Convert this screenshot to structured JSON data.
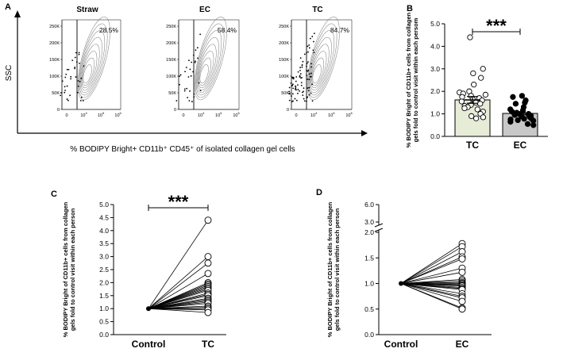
{
  "figure": {
    "panel_a": {
      "letter": "A",
      "y_axis_label": "SSC",
      "x_axis_label": "% BODIPY Bright+ CD11b⁺ CD45⁺ of isolated collagen gel cells",
      "plots": [
        {
          "title": "Straw",
          "percent": "28.5%"
        },
        {
          "title": "EC",
          "percent": "58.4%"
        },
        {
          "title": "TC",
          "percent": "84.7%"
        }
      ],
      "y_ticks": [
        "250K",
        "200K",
        "150K",
        "100K",
        "50K",
        "0"
      ],
      "x_ticks": [
        {
          "base": "0",
          "exp": ""
        },
        {
          "base": "10",
          "exp": "4"
        },
        {
          "base": "10",
          "exp": "5"
        },
        {
          "base": "10",
          "exp": "6"
        }
      ]
    },
    "panel_b": {
      "letter": "B"
    },
    "panel_c": {
      "letter": "C"
    },
    "panel_d": {
      "letter": "D"
    }
  },
  "chart_data": [
    {
      "id": "B",
      "type": "bar",
      "ylabel": "% BODIPY Bright of CD11b+ cells from collagen gels fold to control visit within each persom",
      "categories": [
        "TC",
        "EC"
      ],
      "values": [
        1.62,
        1.02
      ],
      "errors": [
        0.15,
        0.06
      ],
      "bar_colors": [
        "#e6ecd6",
        "#c8c8c8"
      ],
      "points": [
        [
          4.4,
          3.0,
          2.8,
          2.6,
          2.3,
          2.0,
          1.95,
          1.9,
          1.85,
          1.8,
          1.75,
          1.7,
          1.65,
          1.6,
          1.55,
          1.5,
          1.45,
          1.4,
          1.35,
          1.3,
          1.25,
          1.2,
          1.1,
          1.0,
          0.9,
          0.85,
          0.8
        ],
        [
          1.8,
          1.75,
          1.6,
          1.5,
          1.45,
          1.3,
          1.2,
          1.15,
          1.1,
          1.05,
          1.0,
          1.0,
          0.98,
          0.95,
          0.92,
          0.9,
          0.88,
          0.85,
          0.8,
          0.78,
          0.75,
          0.72,
          0.7,
          0.65,
          0.55,
          0.5
        ]
      ],
      "point_styles": [
        "open",
        "filled"
      ],
      "ylim": [
        0,
        5
      ],
      "yticks": [
        "0.0",
        "1.0",
        "2.0",
        "3.0",
        "4.0",
        "5.0"
      ],
      "significance": "***"
    },
    {
      "id": "C",
      "type": "line",
      "ylabel": "% BODIPY Bright of CD11b+ cells from collagen gels fold to control visit within each person",
      "categories": [
        "Control",
        "TC"
      ],
      "start_value": 1.0,
      "end_values": [
        4.4,
        3.0,
        2.75,
        2.35,
        2.0,
        1.95,
        1.9,
        1.85,
        1.8,
        1.75,
        1.7,
        1.6,
        1.55,
        1.5,
        1.4,
        1.35,
        1.3,
        1.25,
        1.2,
        1.1,
        1.05,
        1.0,
        0.95,
        0.85
      ],
      "ylim": [
        0,
        5
      ],
      "yticks": [
        "0.0",
        "0.5",
        "1.0",
        "1.5",
        "2.0",
        "2.5",
        "3.0",
        "3.5",
        "4.0",
        "4.5",
        "5.0"
      ],
      "significance": "***"
    },
    {
      "id": "D",
      "type": "line",
      "ylabel": "% BODIPY Bright of CD11b+ cells from collagen gels fold to control visit within each person",
      "categories": [
        "Control",
        "EC"
      ],
      "start_value": 1.0,
      "end_values": [
        1.78,
        1.72,
        1.62,
        1.52,
        1.48,
        1.3,
        1.22,
        1.08,
        1.05,
        1.02,
        1.0,
        0.98,
        0.96,
        0.95,
        0.92,
        0.9,
        0.88,
        0.8,
        0.75,
        0.72,
        0.65,
        0.52,
        0.5
      ],
      "ylim": [
        0,
        6
      ],
      "axis_break": [
        2.0,
        3.0
      ],
      "yticks": [
        "0.0",
        "0.5",
        "1.0",
        "1.5",
        "2.0",
        "3.0",
        "6.0"
      ]
    }
  ]
}
